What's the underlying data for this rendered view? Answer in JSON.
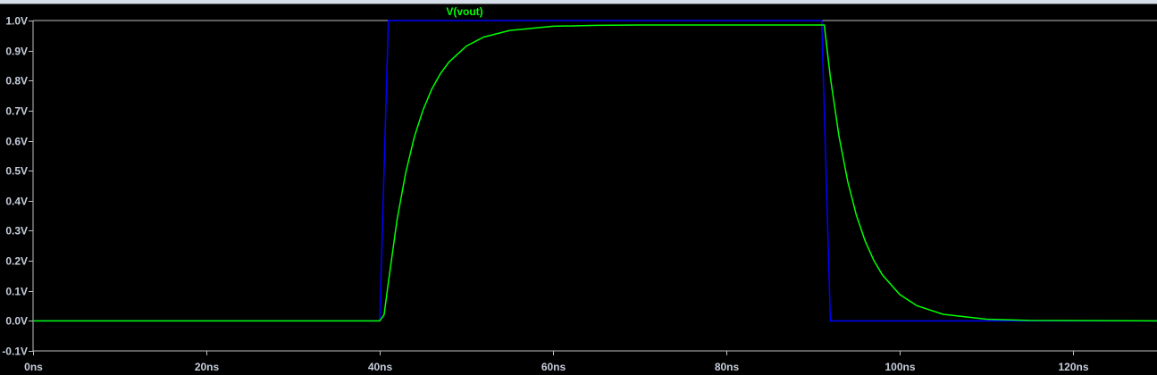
{
  "chart_data": {
    "type": "line",
    "title": "",
    "xlabel": "",
    "ylabel": "",
    "xlim": [
      0,
      130
    ],
    "ylim": [
      -0.1,
      1.0
    ],
    "grid": false,
    "x_unit": "ns",
    "y_unit": "V",
    "x_ticks": [
      "0ns",
      "20ns",
      "40ns",
      "60ns",
      "80ns",
      "100ns",
      "120ns"
    ],
    "x_tick_values": [
      0,
      20,
      40,
      60,
      80,
      100,
      120
    ],
    "y_ticks": [
      "1.0V",
      "0.9V",
      "0.8V",
      "0.7V",
      "0.6V",
      "0.5V",
      "0.4V",
      "0.3V",
      "0.2V",
      "0.1V",
      "0.0V",
      "-0.1V"
    ],
    "y_tick_values": [
      1.0,
      0.9,
      0.8,
      0.7,
      0.6,
      0.5,
      0.4,
      0.3,
      0.2,
      0.1,
      0.0,
      -0.1
    ],
    "legend_placement": "top-center",
    "series": [
      {
        "color": "#0000ff",
        "x": [
          0,
          40,
          41,
          91,
          92,
          130
        ],
        "y": [
          0,
          0,
          1.0,
          1.0,
          0,
          0
        ]
      },
      {
        "name": "V(vout)",
        "color": "#00ff00",
        "x": [
          0,
          40,
          40.5,
          41,
          42,
          43,
          44,
          45,
          46,
          47,
          48,
          50,
          52,
          55,
          60,
          65,
          70,
          91.3,
          92,
          93,
          94,
          95,
          96,
          97,
          98,
          100,
          102,
          105,
          110,
          115,
          130
        ],
        "y": [
          0,
          0,
          0.02,
          0.128,
          0.336,
          0.493,
          0.613,
          0.702,
          0.771,
          0.823,
          0.862,
          0.915,
          0.945,
          0.967,
          0.981,
          0.984,
          0.985,
          0.985,
          0.811,
          0.614,
          0.465,
          0.352,
          0.267,
          0.202,
          0.153,
          0.088,
          0.05,
          0.022,
          0.0055,
          0.0014,
          0
        ]
      }
    ]
  }
}
